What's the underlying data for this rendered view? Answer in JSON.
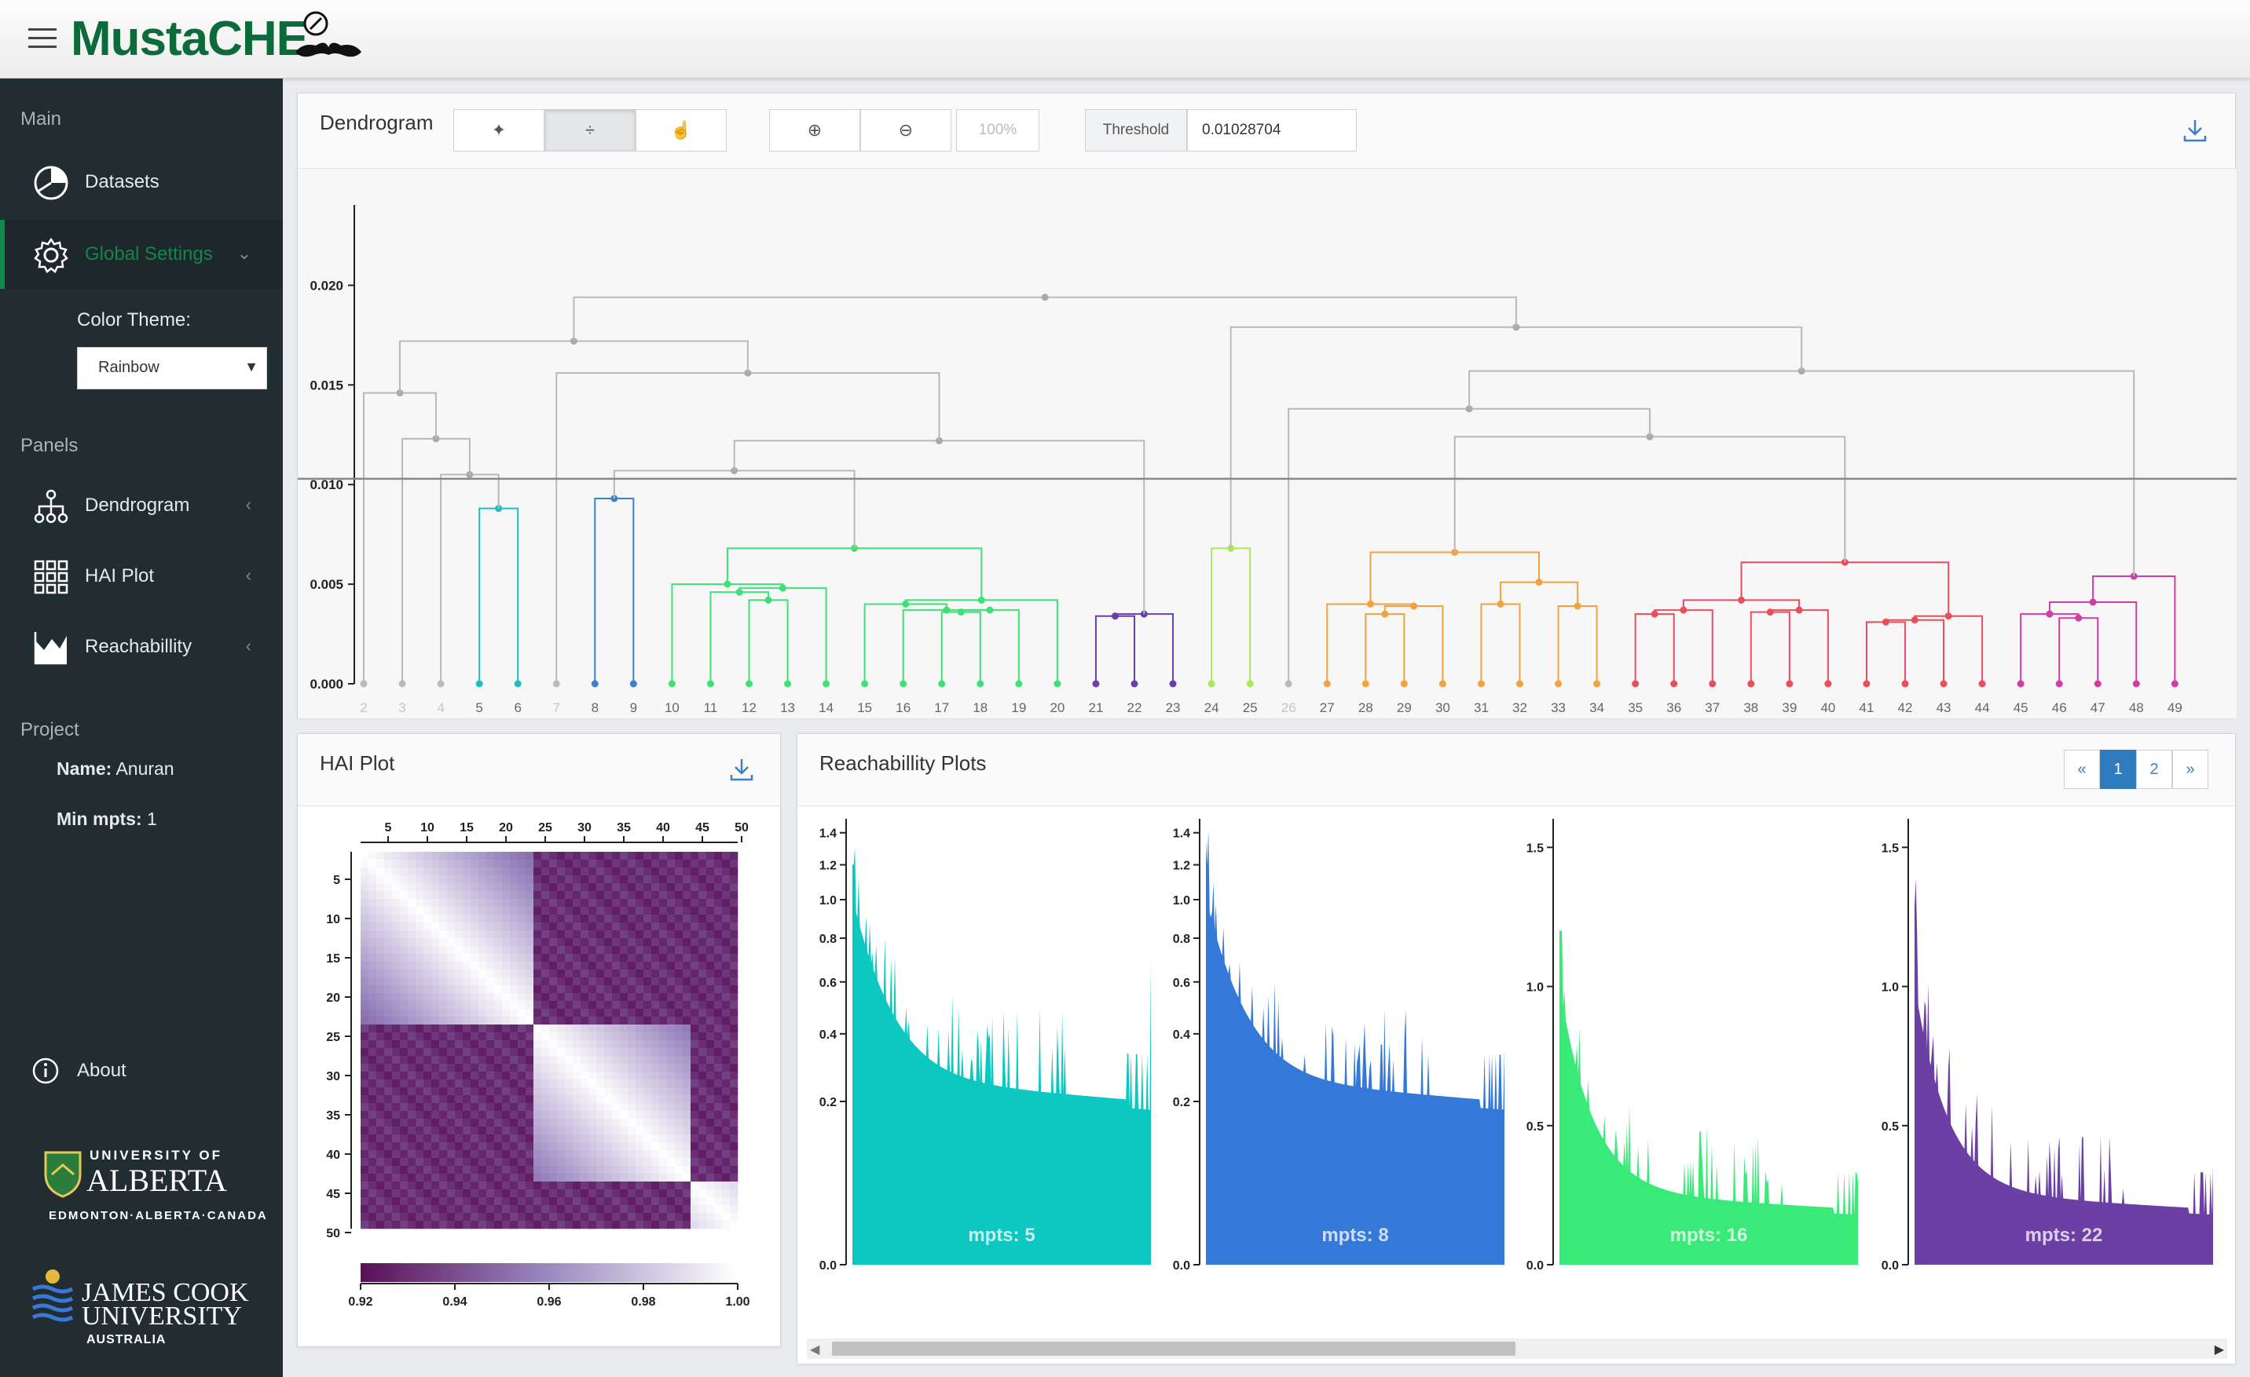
{
  "app": {
    "title": "MustaCHE"
  },
  "sidebar": {
    "main_label": "Main",
    "datasets_label": "Datasets",
    "global_settings_label": "Global Settings",
    "color_theme_label": "Color Theme:",
    "color_theme_value": "Rainbow",
    "panels_label": "Panels",
    "dendrogram_label": "Dendrogram",
    "hai_plot_label": "HAI Plot",
    "reachability_label": "Reachabillity",
    "project_label": "Project",
    "project_name_key": "Name:",
    "project_name_value": "Anuran",
    "min_mpts_key": "Min mpts:",
    "min_mpts_value": "1",
    "about_label": "About",
    "uofa": {
      "line1": "UNIVERSITY OF",
      "line2": "ALBERTA",
      "line3": "EDMONTON·ALBERTA·CANADA"
    },
    "jcu": {
      "line1": "JAMES COOK",
      "line2": "UNIVERSITY",
      "line3": "AUSTRALIA"
    }
  },
  "dendrogram": {
    "title": "Dendrogram",
    "zoom_value": "100%",
    "threshold_label": "Threshold",
    "threshold_value": "0.01028704",
    "threshold": 0.01028704,
    "y_ticks": [
      "0.020",
      "0.015",
      "0.010",
      "0.005",
      "0.000"
    ],
    "leaves": [
      "2",
      "3",
      "4",
      "5",
      "6",
      "7",
      "8",
      "9",
      "10",
      "11",
      "12",
      "13",
      "14",
      "15",
      "16",
      "17",
      "18",
      "19",
      "20",
      "21",
      "22",
      "23",
      "24",
      "25",
      "26",
      "27",
      "28",
      "29",
      "30",
      "31",
      "32",
      "33",
      "34",
      "35",
      "36",
      "37",
      "38",
      "39",
      "40",
      "41",
      "42",
      "43",
      "44",
      "45",
      "46",
      "47",
      "48",
      "49"
    ],
    "colors": {
      "gray": "#b8b8b8",
      "cyan": "#1cbfc4",
      "blue": "#3c80cc",
      "green": "#3fe07a",
      "purple": "#6a3fa8",
      "lime": "#a9e85a",
      "orange": "#f2a240",
      "red": "#ea4e5c",
      "magenta": "#cf3da5"
    }
  },
  "hai": {
    "title": "HAI Plot",
    "x_ticks": [
      "5",
      "10",
      "15",
      "20",
      "25",
      "30",
      "35",
      "40",
      "45",
      "50"
    ],
    "y_ticks": [
      "5",
      "10",
      "15",
      "20",
      "25",
      "30",
      "35",
      "40",
      "45",
      "50"
    ],
    "legend_ticks": [
      "0.92",
      "0.94",
      "0.96",
      "0.98",
      "1.00"
    ],
    "color_low": "#5a1057",
    "color_high": "#ffffff"
  },
  "reach": {
    "title": "Reachabillity Plots",
    "pager": [
      "«",
      "1",
      "2",
      "»"
    ],
    "plots": [
      {
        "label": "mpts: 5",
        "color": "#0cc8c0",
        "ticks": [
          "1.4",
          "1.2",
          "1.0",
          "0.8",
          "0.6",
          "0.4",
          "0.2",
          "0.0"
        ]
      },
      {
        "label": "mpts: 8",
        "color": "#3579d8",
        "ticks": [
          "1.4",
          "1.2",
          "1.0",
          "0.8",
          "0.6",
          "0.4",
          "0.2",
          "0.0"
        ]
      },
      {
        "label": "mpts: 16",
        "color": "#3aea78",
        "ticks": [
          "1.5",
          "1.0",
          "0.5",
          "0.0"
        ]
      },
      {
        "label": "mpts: 22",
        "color": "#6b3fa3",
        "ticks": [
          "1.5",
          "1.0",
          "0.5",
          "0.0"
        ]
      }
    ]
  }
}
